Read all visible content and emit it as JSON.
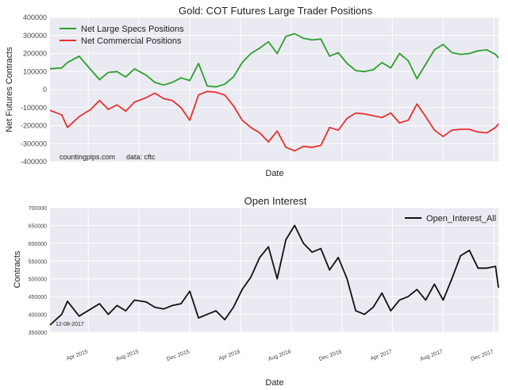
{
  "colors": {
    "bg": "#EAEAF2",
    "grid": "#ffffff",
    "green": "#2ca02c",
    "red": "#e8302c",
    "black": "#111111"
  },
  "chart_data": [
    {
      "type": "line",
      "title": "Gold: COT Futures Large Trader Positions",
      "xlabel": "Date",
      "ylabel": "Net Futures Contracts",
      "ylim": [
        -400000,
        400000
      ],
      "yticks": [
        "400000",
        "300000",
        "200000",
        "100000",
        "0",
        "-100000",
        "-200000",
        "-300000",
        "-400000"
      ],
      "yticks_values": [
        400000,
        300000,
        200000,
        100000,
        0,
        -100000,
        -200000,
        -300000,
        -400000
      ],
      "legend": "top-left",
      "annotation": {
        "source": "countingpips.com",
        "data": "data: cftc"
      },
      "x": [
        "2014-12-30",
        "2015-01-27",
        "2015-02-10",
        "2015-03-10",
        "2015-04-07",
        "2015-04-28",
        "2015-05-19",
        "2015-06-09",
        "2015-06-30",
        "2015-07-21",
        "2015-08-18",
        "2015-09-08",
        "2015-09-29",
        "2015-10-20",
        "2015-11-10",
        "2015-12-01",
        "2015-12-22",
        "2016-01-12",
        "2016-02-02",
        "2016-02-23",
        "2016-03-15",
        "2016-04-05",
        "2016-04-26",
        "2016-05-17",
        "2016-06-07",
        "2016-06-28",
        "2016-07-19",
        "2016-08-09",
        "2016-08-30",
        "2016-09-20",
        "2016-10-11",
        "2016-11-01",
        "2016-11-22",
        "2016-12-13",
        "2017-01-03",
        "2017-01-24",
        "2017-02-14",
        "2017-03-07",
        "2017-03-28",
        "2017-04-18",
        "2017-05-09",
        "2017-05-30",
        "2017-06-20",
        "2017-07-11",
        "2017-08-01",
        "2017-08-22",
        "2017-09-12",
        "2017-10-03",
        "2017-10-24",
        "2017-11-14",
        "2017-12-05",
        "2017-12-12"
      ],
      "series": [
        {
          "name": "Net Large Specs Positions",
          "color": "#2ca02c",
          "values": [
            115000,
            120000,
            150000,
            185000,
            110000,
            55000,
            95000,
            100000,
            70000,
            115000,
            80000,
            40000,
            25000,
            40000,
            65000,
            50000,
            145000,
            20000,
            15000,
            30000,
            70000,
            150000,
            200000,
            230000,
            265000,
            200000,
            295000,
            310000,
            285000,
            275000,
            280000,
            185000,
            205000,
            145000,
            105000,
            100000,
            110000,
            150000,
            120000,
            200000,
            160000,
            60000,
            140000,
            220000,
            250000,
            205000,
            195000,
            200000,
            215000,
            220000,
            195000,
            175000
          ]
        },
        {
          "name": "Net Commercial Positions",
          "color": "#e8302c",
          "values": [
            -115000,
            -140000,
            -210000,
            -150000,
            -110000,
            -60000,
            -110000,
            -85000,
            -120000,
            -70000,
            -45000,
            -20000,
            -50000,
            -60000,
            -100000,
            -170000,
            -30000,
            -10000,
            -15000,
            -30000,
            -90000,
            -170000,
            -210000,
            -240000,
            -290000,
            -230000,
            -320000,
            -340000,
            -315000,
            -320000,
            -310000,
            -210000,
            -225000,
            -160000,
            -130000,
            -135000,
            -145000,
            -155000,
            -130000,
            -185000,
            -170000,
            -80000,
            -150000,
            -225000,
            -260000,
            -225000,
            -220000,
            -220000,
            -235000,
            -240000,
            -210000,
            -190000
          ]
        }
      ]
    },
    {
      "type": "line",
      "title": "Open Interest",
      "xlabel": "Date",
      "ylabel": "Contracts",
      "ylim": [
        350000,
        700000
      ],
      "yticks": [
        "700000",
        "650000",
        "600000",
        "550000",
        "500000",
        "450000",
        "400000",
        "350000"
      ],
      "yticks_values": [
        700000,
        650000,
        600000,
        550000,
        500000,
        450000,
        400000,
        350000
      ],
      "xticks": [
        "Apr 2015",
        "Aug 2015",
        "Dec 2015",
        "Apr 2016",
        "Aug 2016",
        "Dec 2016",
        "Apr 2017",
        "Aug 2017",
        "Dec 2017"
      ],
      "xticks_dates": [
        "2015-04-01",
        "2015-08-01",
        "2015-12-01",
        "2016-04-01",
        "2016-08-01",
        "2016-12-01",
        "2017-04-01",
        "2017-08-01",
        "2017-12-01"
      ],
      "legend": "top-right",
      "annotation": "12-08-2017",
      "x": [
        "2014-12-30",
        "2015-01-27",
        "2015-02-10",
        "2015-03-10",
        "2015-04-07",
        "2015-04-28",
        "2015-05-19",
        "2015-06-09",
        "2015-06-30",
        "2015-07-21",
        "2015-08-18",
        "2015-09-08",
        "2015-09-29",
        "2015-10-20",
        "2015-11-10",
        "2015-12-01",
        "2015-12-22",
        "2016-01-12",
        "2016-02-02",
        "2016-02-23",
        "2016-03-15",
        "2016-04-05",
        "2016-04-26",
        "2016-05-17",
        "2016-06-07",
        "2016-06-28",
        "2016-07-19",
        "2016-08-09",
        "2016-08-30",
        "2016-09-20",
        "2016-10-11",
        "2016-11-01",
        "2016-11-22",
        "2016-12-13",
        "2017-01-03",
        "2017-01-24",
        "2017-02-14",
        "2017-03-07",
        "2017-03-28",
        "2017-04-18",
        "2017-05-09",
        "2017-05-30",
        "2017-06-20",
        "2017-07-11",
        "2017-08-01",
        "2017-08-22",
        "2017-09-12",
        "2017-10-03",
        "2017-10-24",
        "2017-11-14",
        "2017-12-05",
        "2017-12-12"
      ],
      "series": [
        {
          "name": "Open_Interest_All",
          "color": "#111111",
          "values": [
            370000,
            400000,
            437000,
            395000,
            415000,
            430000,
            400000,
            425000,
            410000,
            440000,
            435000,
            420000,
            415000,
            425000,
            430000,
            465000,
            390000,
            400000,
            410000,
            385000,
            420000,
            470000,
            505000,
            560000,
            590000,
            500000,
            610000,
            650000,
            600000,
            575000,
            585000,
            525000,
            560000,
            500000,
            410000,
            400000,
            420000,
            460000,
            410000,
            440000,
            450000,
            470000,
            440000,
            485000,
            440000,
            500000,
            565000,
            580000,
            530000,
            530000,
            535000,
            475000
          ]
        }
      ]
    }
  ]
}
